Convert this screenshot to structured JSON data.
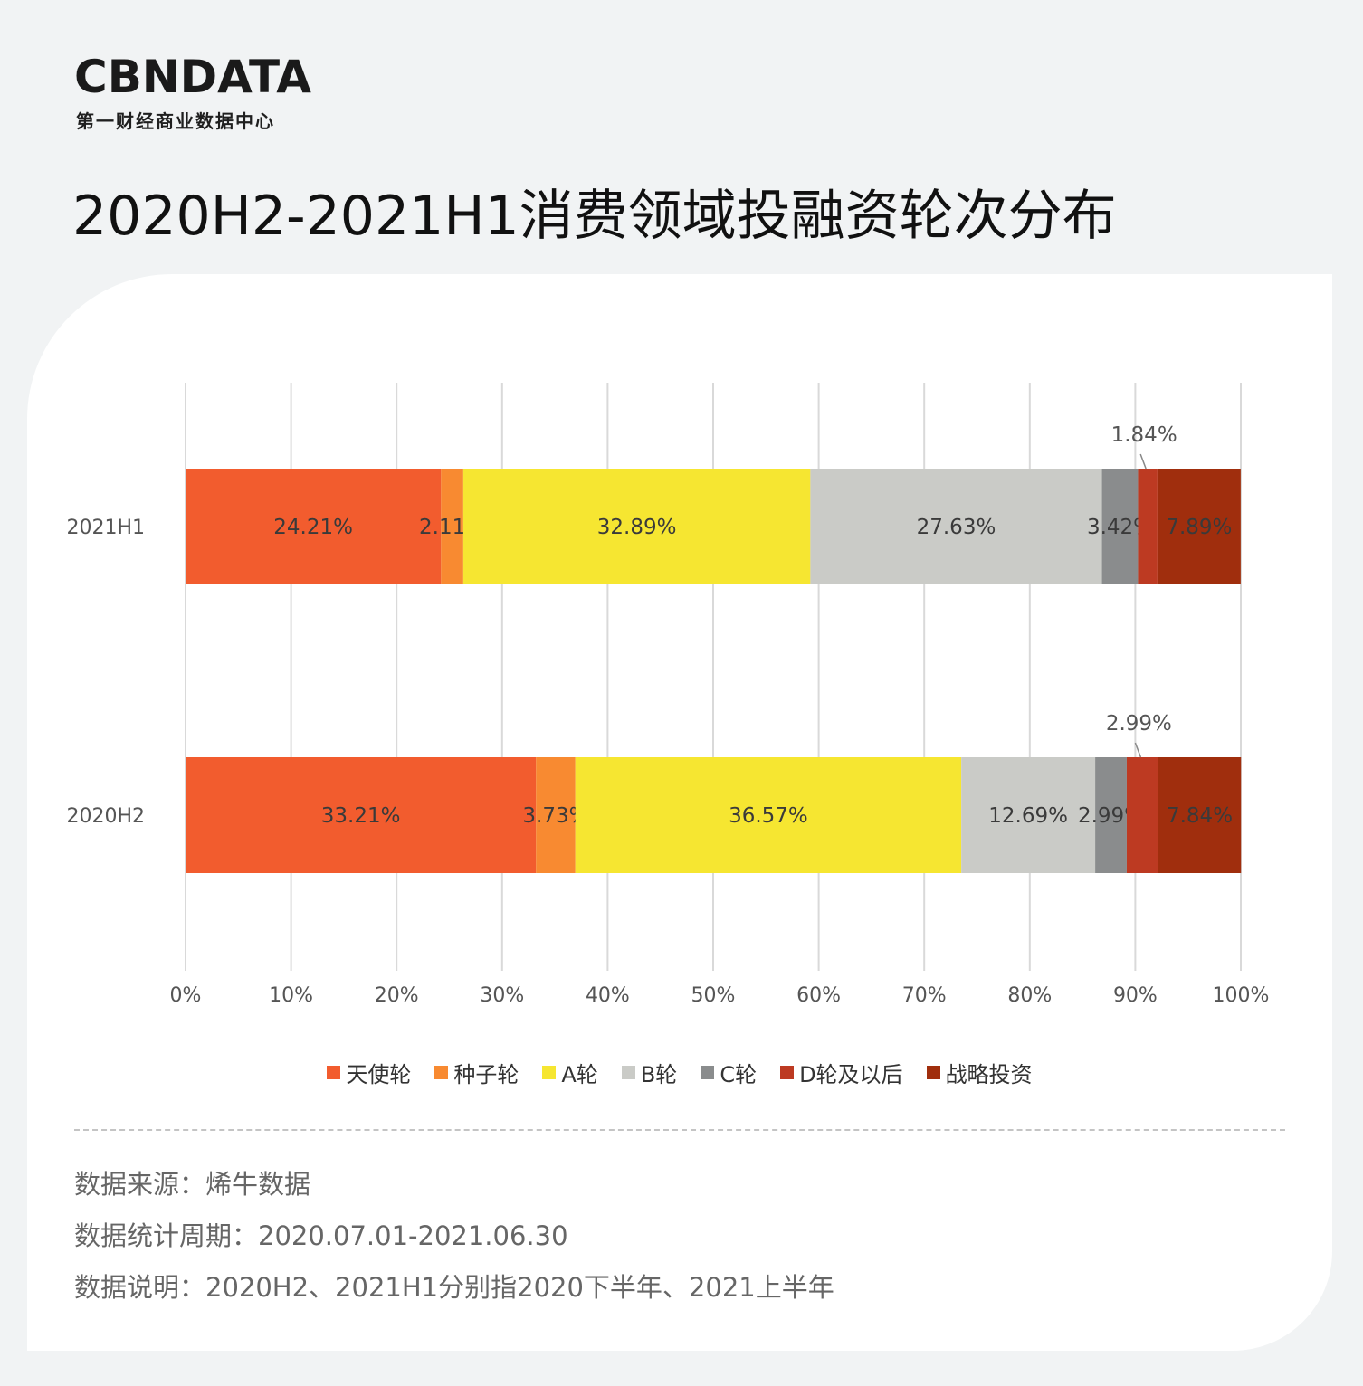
{
  "header": {
    "logo_text": "CBNDATA",
    "logo_tagline": "第一财经商业数据中心",
    "title": "2020H2-2021H1消费领域投融资轮次分布"
  },
  "chart_data": {
    "type": "bar",
    "orientation": "horizontal",
    "stacked": true,
    "percent_stacked": true,
    "title": "2020H2-2021H1消费领域投融资轮次分布",
    "xlabel": "",
    "ylabel": "",
    "categories": [
      "2021H1",
      "2020H2"
    ],
    "xlim": [
      0,
      100
    ],
    "x_ticks": [
      "0%",
      "10%",
      "20%",
      "30%",
      "40%",
      "50%",
      "60%",
      "70%",
      "80%",
      "90%",
      "100%"
    ],
    "grid": "vertical",
    "legend_position": "bottom",
    "series": [
      {
        "name": "天使轮",
        "color": "#f25c2e",
        "values": [
          24.21,
          33.21
        ],
        "labels": [
          "24.21%",
          "33.21%"
        ]
      },
      {
        "name": "种子轮",
        "color": "#f88a31",
        "values": [
          2.11,
          3.73
        ],
        "labels": [
          "2.11%",
          "3.73%"
        ]
      },
      {
        "name": "A轮",
        "color": "#f6e631",
        "values": [
          32.89,
          36.57
        ],
        "labels": [
          "32.89%",
          "36.57%"
        ]
      },
      {
        "name": "B轮",
        "color": "#cacbc7",
        "values": [
          27.63,
          12.69
        ],
        "labels": [
          "27.63%",
          "12.69%"
        ]
      },
      {
        "name": "C轮",
        "color": "#8a8c8d",
        "values": [
          3.42,
          2.99
        ],
        "labels": [
          "3.42%",
          "2.99%"
        ]
      },
      {
        "name": "D轮及以后",
        "color": "#bd3a22",
        "values": [
          1.84,
          2.99
        ],
        "labels": [
          "1.84%",
          "2.99%"
        ]
      },
      {
        "name": "战略投资",
        "color": "#a02e0d",
        "values": [
          7.89,
          7.84
        ],
        "labels": [
          "7.89%",
          "7.84%"
        ]
      }
    ],
    "callout_labels": [
      "1.84%",
      "2.99%"
    ]
  },
  "footer": {
    "notes": [
      "数据来源：烯牛数据",
      "数据统计周期：2020.07.01-2021.06.30",
      "数据说明：2020H2、2021H1分别指2020下半年、2021上半年"
    ]
  }
}
